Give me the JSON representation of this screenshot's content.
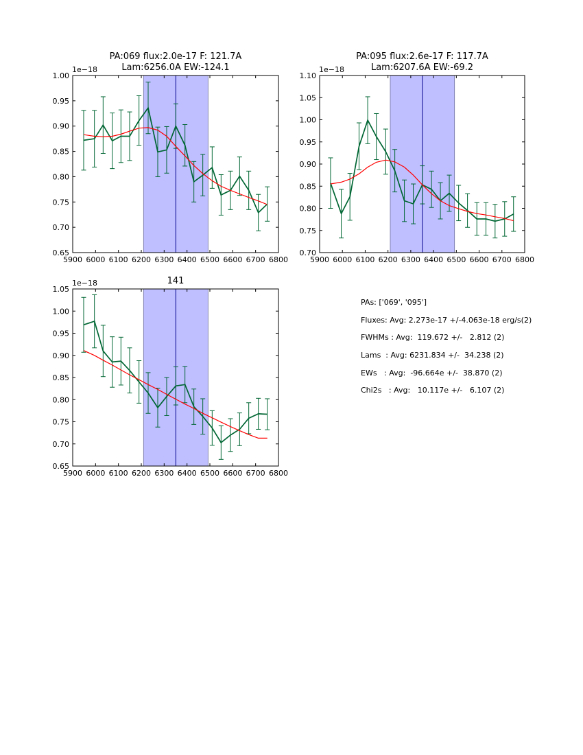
{
  "chart_data": [
    {
      "type": "line",
      "title": "PA:069 flux:2.0e-17 F: 121.7A\nLam:6256.0A EW:-124.1",
      "offset_label": "1e−18",
      "xlim": [
        5900,
        6800
      ],
      "ylim": [
        0.65,
        1.0
      ],
      "xticks": [
        5900,
        6000,
        6100,
        6200,
        6300,
        6400,
        6500,
        6600,
        6700,
        6800
      ],
      "xtick_labels": [
        "5900",
        "6000",
        "6100",
        "6200",
        "6300",
        "6400",
        "6500",
        "6600",
        "6700",
        "6800"
      ],
      "yticks": [
        0.65,
        0.7,
        0.75,
        0.8,
        0.85,
        0.9,
        0.95,
        1.0
      ],
      "ytick_labels": [
        "0.65",
        "0.70",
        "0.75",
        "0.80",
        "0.85",
        "0.90",
        "0.95",
        "1.00"
      ],
      "shade": [
        6210,
        6492
      ],
      "vline": 6351,
      "x": [
        5948,
        5995,
        6033,
        6073,
        6111,
        6149,
        6190,
        6230,
        6272,
        6311,
        6351,
        6391,
        6430,
        6469,
        6510,
        6549,
        6590,
        6630,
        6670,
        6712,
        6751
      ],
      "series": [
        {
          "color": "#006633",
          "values": [
            0.872,
            0.875,
            0.902,
            0.871,
            0.88,
            0.88,
            0.911,
            0.936,
            0.849,
            0.853,
            0.9,
            0.862,
            0.79,
            0.803,
            0.818,
            0.764,
            0.773,
            0.801,
            0.773,
            0.729,
            0.746
          ],
          "err": [
            0.059,
            0.056,
            0.056,
            0.055,
            0.052,
            0.048,
            0.049,
            0.051,
            0.049,
            0.046,
            0.044,
            0.041,
            0.04,
            0.041,
            0.041,
            0.04,
            0.038,
            0.038,
            0.038,
            0.036,
            0.034
          ]
        },
        {
          "color": "#ff0000",
          "values": [
            0.883,
            0.88,
            0.879,
            0.88,
            0.884,
            0.89,
            0.896,
            0.897,
            0.892,
            0.88,
            0.86,
            0.841,
            0.822,
            0.806,
            0.792,
            0.781,
            0.773,
            0.766,
            0.759,
            0.752,
            0.745
          ]
        }
      ]
    },
    {
      "type": "line",
      "title": "PA:095 flux:2.6e-17 F: 117.7A\nLam:6207.6A EW:-69.2",
      "offset_label": "1e−18",
      "xlim": [
        5900,
        6800
      ],
      "ylim": [
        0.7,
        1.1
      ],
      "xticks": [
        5900,
        6000,
        6100,
        6200,
        6300,
        6400,
        6500,
        6600,
        6700,
        6800
      ],
      "xtick_labels": [
        "5900",
        "6000",
        "6100",
        "6200",
        "6300",
        "6400",
        "6500",
        "6600",
        "6700",
        "6800"
      ],
      "yticks": [
        0.7,
        0.75,
        0.8,
        0.85,
        0.9,
        0.95,
        1.0,
        1.05,
        1.1
      ],
      "ytick_labels": [
        "0.70",
        "0.75",
        "0.80",
        "0.85",
        "0.90",
        "0.95",
        "1.00",
        "1.05",
        "1.10"
      ],
      "shade": [
        6210,
        6492
      ],
      "vline": 6351,
      "x": [
        5948,
        5995,
        6033,
        6073,
        6111,
        6149,
        6190,
        6230,
        6272,
        6311,
        6351,
        6391,
        6430,
        6469,
        6510,
        6549,
        6590,
        6630,
        6670,
        6712,
        6751
      ],
      "series": [
        {
          "color": "#006633",
          "values": [
            0.857,
            0.788,
            0.826,
            0.94,
            0.999,
            0.962,
            0.928,
            0.885,
            0.817,
            0.81,
            0.853,
            0.843,
            0.817,
            0.834,
            0.812,
            0.795,
            0.776,
            0.776,
            0.771,
            0.776,
            0.787
          ],
          "err": [
            0.057,
            0.055,
            0.053,
            0.053,
            0.053,
            0.052,
            0.051,
            0.048,
            0.047,
            0.045,
            0.043,
            0.041,
            0.041,
            0.041,
            0.04,
            0.038,
            0.037,
            0.037,
            0.038,
            0.039,
            0.039
          ]
        },
        {
          "color": "#ff0000",
          "values": [
            0.855,
            0.859,
            0.866,
            0.878,
            0.893,
            0.904,
            0.909,
            0.905,
            0.893,
            0.875,
            0.853,
            0.833,
            0.817,
            0.806,
            0.799,
            0.793,
            0.788,
            0.785,
            0.781,
            0.777,
            0.772
          ]
        }
      ]
    },
    {
      "type": "line",
      "title": "141",
      "offset_label": "1e−18",
      "xlim": [
        5900,
        6800
      ],
      "ylim": [
        0.65,
        1.05
      ],
      "xticks": [
        5900,
        6000,
        6100,
        6200,
        6300,
        6400,
        6500,
        6600,
        6700,
        6800
      ],
      "xtick_labels": [
        "5900",
        "6000",
        "6100",
        "6200",
        "6300",
        "6400",
        "6500",
        "6600",
        "6700",
        "6800"
      ],
      "yticks": [
        0.65,
        0.7,
        0.75,
        0.8,
        0.85,
        0.9,
        0.95,
        1.0,
        1.05
      ],
      "ytick_labels": [
        "0.65",
        "0.70",
        "0.75",
        "0.80",
        "0.85",
        "0.90",
        "0.95",
        "1.00",
        "1.05"
      ],
      "shade": [
        6210,
        6492
      ],
      "vline": 6351,
      "x": [
        5948,
        5995,
        6033,
        6073,
        6111,
        6149,
        6190,
        6230,
        6272,
        6311,
        6351,
        6391,
        6430,
        6469,
        6510,
        6549,
        6590,
        6630,
        6670,
        6712,
        6751
      ],
      "series": [
        {
          "color": "#006633",
          "values": [
            0.969,
            0.977,
            0.91,
            0.885,
            0.887,
            0.866,
            0.84,
            0.815,
            0.782,
            0.807,
            0.831,
            0.834,
            0.784,
            0.762,
            0.736,
            0.703,
            0.72,
            0.733,
            0.758,
            0.768,
            0.767
          ],
          "err": [
            0.062,
            0.06,
            0.058,
            0.057,
            0.054,
            0.051,
            0.048,
            0.046,
            0.044,
            0.043,
            0.043,
            0.041,
            0.04,
            0.04,
            0.039,
            0.038,
            0.037,
            0.037,
            0.035,
            0.035,
            0.035
          ]
        },
        {
          "color": "#ff0000",
          "values": [
            0.911,
            0.9,
            0.889,
            0.878,
            0.867,
            0.856,
            0.845,
            0.834,
            0.823,
            0.812,
            0.801,
            0.79,
            0.78,
            0.769,
            0.759,
            0.749,
            0.739,
            0.73,
            0.721,
            0.713,
            0.713
          ]
        }
      ]
    }
  ],
  "stats": {
    "pas": "PAs: ['069', '095']",
    "fluxes": "Fluxes: Avg: 2.273e-17 +/-4.063e-18 erg/s(2)",
    "fwhms": "FWHMs : Avg:  119.672 +/-   2.812 (2)",
    "lams": "Lams  : Avg: 6231.834 +/-  34.238 (2)",
    "ews": "EWs   : Avg:  -96.664e +/-  38.870 (2)",
    "chi2s": "Chi2s   : Avg:   10.117e +/-   6.107 (2)"
  }
}
